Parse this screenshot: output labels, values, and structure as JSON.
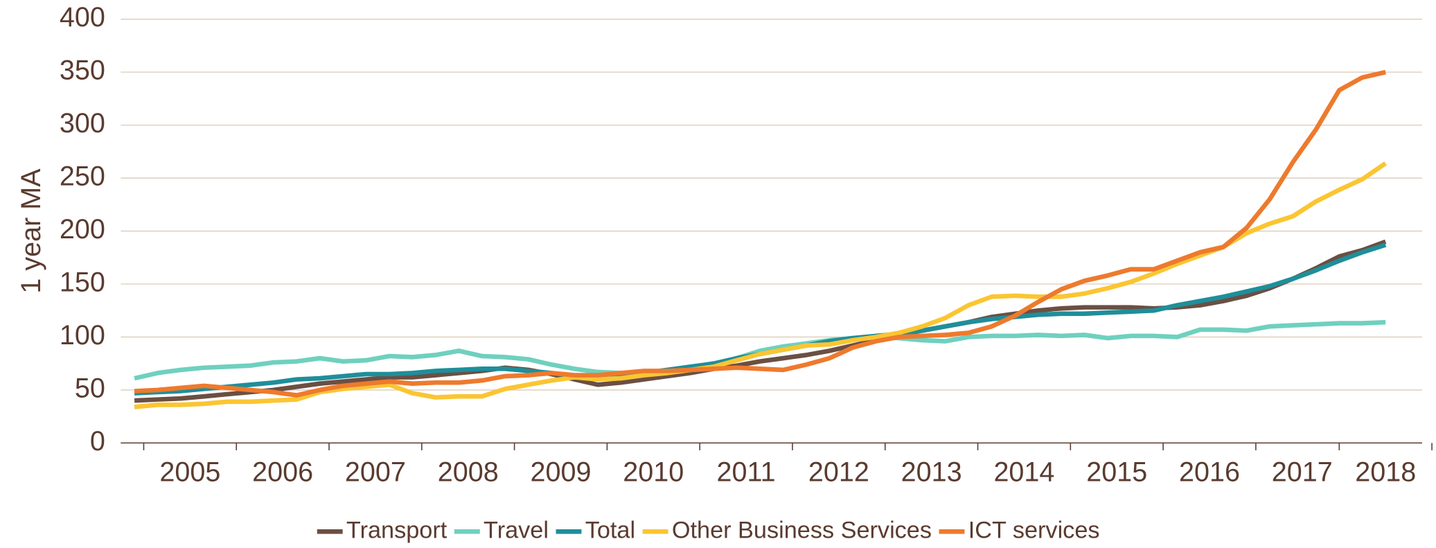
{
  "chart_data": {
    "type": "line",
    "y_label": "1 year MA",
    "categories": [
      null,
      null,
      "2005",
      null,
      null,
      null,
      "2006",
      null,
      null,
      null,
      "2007",
      null,
      null,
      null,
      "2008",
      null,
      null,
      null,
      "2009",
      null,
      null,
      null,
      "2010",
      null,
      null,
      null,
      "2011",
      null,
      null,
      null,
      "2012",
      null,
      null,
      null,
      "2013",
      null,
      null,
      null,
      "2014",
      null,
      null,
      null,
      "2015",
      null,
      null,
      null,
      "2016",
      null,
      null,
      null,
      "2017",
      null,
      null,
      null,
      "2018"
    ],
    "ylim": [
      0,
      400
    ],
    "yticks": [
      0,
      50,
      100,
      150,
      200,
      250,
      300,
      350,
      400
    ],
    "grid": true,
    "legend": "bottom",
    "series": [
      {
        "name": "Transport",
        "color": "#6b4f43",
        "values": [
          40,
          41,
          42,
          44,
          46,
          48,
          50,
          53,
          56,
          58,
          60,
          62,
          62,
          64,
          66,
          68,
          71,
          69,
          65,
          60,
          55,
          57,
          60,
          63,
          66,
          70,
          73,
          77,
          80,
          83,
          87,
          92,
          97,
          102,
          106,
          110,
          114,
          119,
          122,
          125,
          127,
          128,
          128,
          128,
          127,
          128,
          130,
          134,
          139,
          146,
          155,
          165,
          176,
          182,
          190
        ]
      },
      {
        "name": "Travel",
        "color": "#6fd0bf",
        "values": [
          61,
          66,
          69,
          71,
          72,
          73,
          76,
          77,
          80,
          77,
          78,
          82,
          81,
          83,
          87,
          82,
          81,
          79,
          74,
          70,
          67,
          66,
          66,
          68,
          70,
          73,
          80,
          87,
          91,
          94,
          97,
          99,
          100,
          99,
          97,
          96,
          100,
          101,
          101,
          102,
          101,
          102,
          99,
          101,
          101,
          100,
          107,
          107,
          106,
          110,
          111,
          112,
          113,
          113,
          114
        ]
      },
      {
        "name": "Total",
        "color": "#1f8e9a",
        "values": [
          47,
          48,
          49,
          51,
          53,
          55,
          57,
          60,
          61,
          63,
          65,
          65,
          66,
          68,
          69,
          70,
          70,
          68,
          66,
          63,
          62,
          63,
          66,
          69,
          72,
          75,
          80,
          84,
          88,
          92,
          96,
          99,
          101,
          103,
          106,
          110,
          114,
          117,
          119,
          121,
          122,
          122,
          123,
          124,
          125,
          130,
          134,
          138,
          143,
          148,
          155,
          163,
          172,
          180,
          187
        ]
      },
      {
        "name": "Other Business Services",
        "color": "#fbc532",
        "values": [
          34,
          36,
          36,
          37,
          39,
          39,
          40,
          41,
          48,
          51,
          53,
          55,
          47,
          43,
          44,
          44,
          51,
          55,
          59,
          62,
          60,
          61,
          64,
          66,
          69,
          72,
          78,
          84,
          88,
          92,
          93,
          97,
          100,
          104,
          110,
          118,
          130,
          138,
          139,
          138,
          138,
          141,
          146,
          152,
          160,
          169,
          177,
          185,
          198,
          207,
          214,
          228,
          239,
          249,
          264
        ]
      },
      {
        "name": "ICT services",
        "color": "#ee7a2d",
        "values": [
          49,
          50,
          52,
          54,
          52,
          50,
          48,
          45,
          50,
          54,
          56,
          58,
          56,
          57,
          57,
          59,
          63,
          64,
          66,
          64,
          64,
          66,
          68,
          68,
          69,
          70,
          71,
          70,
          69,
          74,
          80,
          90,
          96,
          100,
          101,
          102,
          104,
          110,
          120,
          133,
          145,
          153,
          158,
          164,
          164,
          172,
          180,
          185,
          203,
          230,
          265,
          296,
          333,
          345,
          350
        ]
      }
    ]
  }
}
